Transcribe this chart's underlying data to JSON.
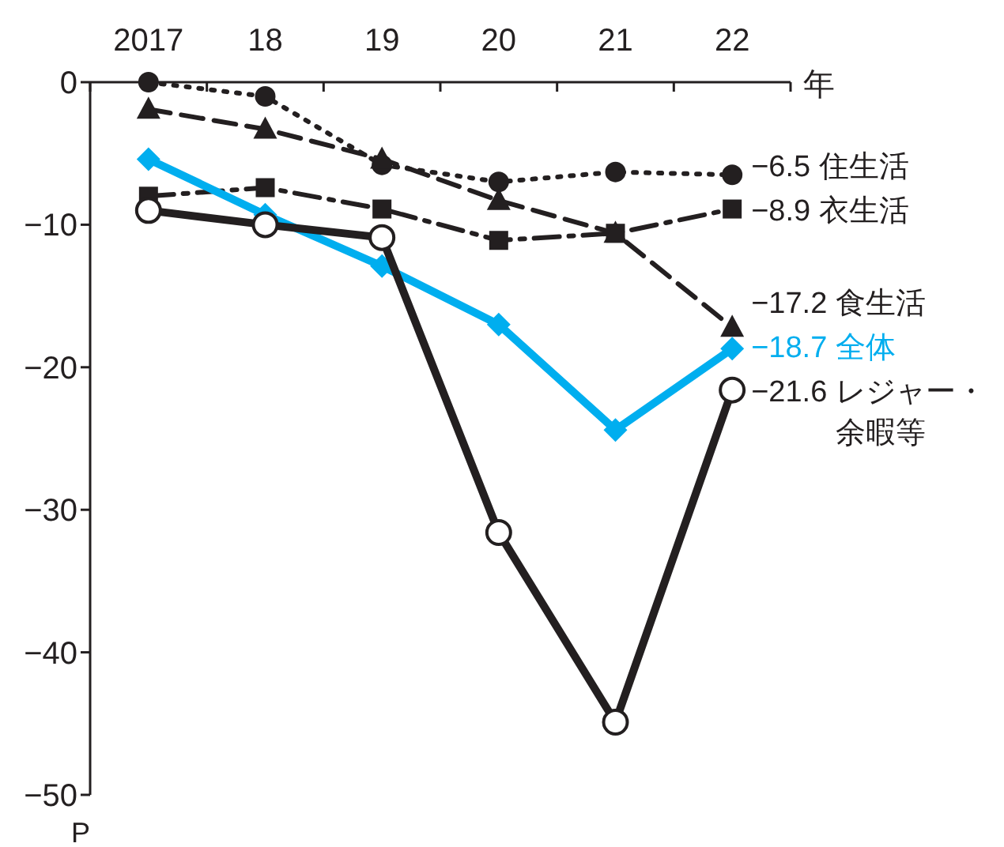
{
  "chart_data": {
    "type": "line",
    "xlabel": "年",
    "ylabel": "P",
    "categories": [
      "2017",
      "18",
      "19",
      "20",
      "21",
      "22"
    ],
    "ylim": [
      -50,
      0
    ],
    "yticks": [
      {
        "value": 0,
        "label": "0"
      },
      {
        "value": -10,
        "label": "−10"
      },
      {
        "value": -20,
        "label": "−20"
      },
      {
        "value": -30,
        "label": "−30"
      },
      {
        "value": -40,
        "label": "−40"
      },
      {
        "value": -50,
        "label": "−50"
      }
    ],
    "grid": false,
    "series": [
      {
        "name": "住生活",
        "color": "#231f20",
        "marker": "circle",
        "line_style": "dotted",
        "values": [
          0,
          -1.0,
          -5.8,
          -7.0,
          -6.3,
          -6.5
        ],
        "value_labels": [
          null,
          null,
          null,
          null,
          null,
          "−6.5"
        ]
      },
      {
        "name": "衣生活",
        "color": "#231f20",
        "marker": "square",
        "line_style": "dashdot",
        "values": [
          -8.0,
          -7.4,
          -8.9,
          -11.1,
          -10.6,
          -8.9
        ],
        "value_labels": [
          null,
          null,
          null,
          null,
          null,
          "−8.9"
        ]
      },
      {
        "name": "食生活",
        "color": "#231f20",
        "marker": "triangle",
        "line_style": "dashed",
        "values": [
          -1.9,
          -3.3,
          -5.4,
          -8.3,
          -10.6,
          -17.2
        ],
        "value_labels": [
          null,
          null,
          null,
          null,
          null,
          "−17.2"
        ]
      },
      {
        "name": "全体",
        "color": "#00aeef",
        "marker": "diamond",
        "line_style": "solid",
        "values": [
          -5.4,
          -9.3,
          -12.9,
          -17.0,
          -24.4,
          -18.7
        ],
        "value_labels": [
          null,
          null,
          null,
          null,
          null,
          "−18.7"
        ]
      },
      {
        "name": "レジャー・余暇等",
        "color": "#231f20",
        "marker": "open circle",
        "line_style": "solid",
        "values": [
          -9.0,
          -10.0,
          -10.9,
          -31.6,
          -44.9,
          -21.6
        ],
        "value_labels": [
          null,
          null,
          null,
          null,
          null,
          "−21.6"
        ]
      }
    ]
  }
}
